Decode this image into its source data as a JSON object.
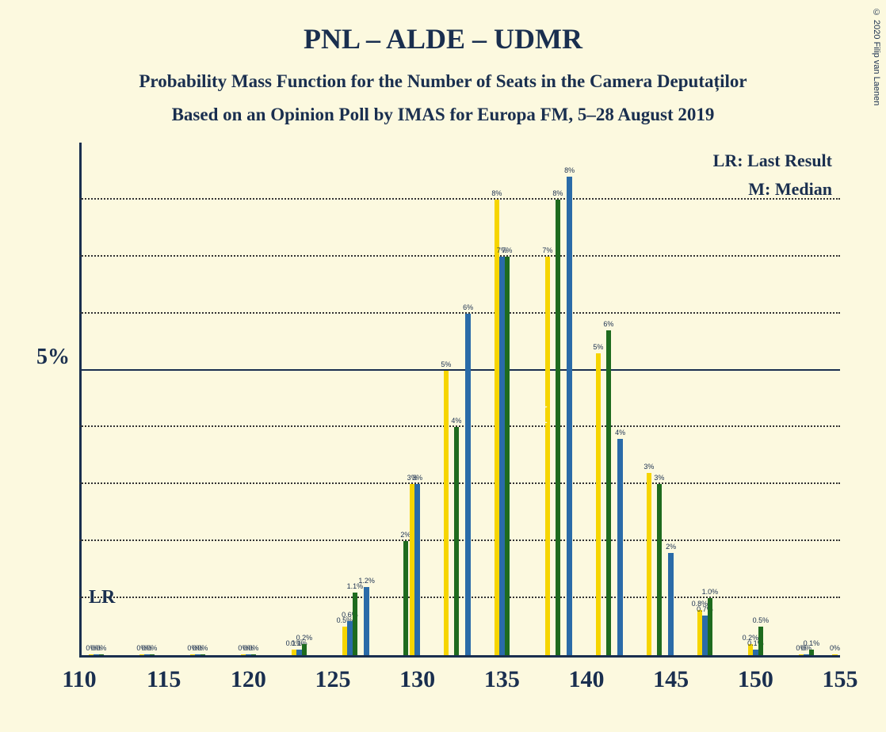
{
  "title": "PNL – ALDE – UDMR",
  "title_fontsize": 36,
  "subtitle1": "Probability Mass Function for the Number of Seats in the Camera Deputaților",
  "subtitle2": "Based on an Opinion Poll by IMAS for Europa FM, 5–28 August 2019",
  "subtitle_fontsize": 23,
  "copyright": "© 2020 Filip van Laenen",
  "background_color": "#fcf9df",
  "text_color": "#1a2f4f",
  "legend_lr": "LR: Last Result",
  "legend_m": "M: Median",
  "lr_text": "LR",
  "median_text": "M",
  "y_axis": {
    "max_pct": 9,
    "tick_major": 5,
    "tick_label": "5%",
    "gridlines": [
      1,
      2,
      3,
      4,
      5,
      6,
      7,
      8
    ]
  },
  "x_axis": {
    "min": 110,
    "max": 155,
    "ticks": [
      110,
      115,
      120,
      125,
      130,
      135,
      140,
      145,
      150,
      155
    ]
  },
  "colors": {
    "series_a": "#f6d500",
    "series_b": "#2a6ba8",
    "series_c": "#1e6b1e"
  },
  "bar_width": 6.5,
  "median_seat": 137,
  "groups": [
    {
      "seat": 111,
      "a": {
        "v": 0,
        "lbl": "0%"
      },
      "b": {
        "v": 0,
        "lbl": "0%"
      },
      "c": {
        "v": 0,
        "lbl": "0%"
      }
    },
    {
      "seat": 114,
      "a": {
        "v": 0,
        "lbl": "0%"
      },
      "b": {
        "v": 0,
        "lbl": "0%"
      },
      "c": {
        "v": 0,
        "lbl": "0%"
      }
    },
    {
      "seat": 117,
      "a": {
        "v": 0,
        "lbl": "0%"
      },
      "b": {
        "v": 0,
        "lbl": "0%"
      },
      "c": {
        "v": 0,
        "lbl": "0%"
      }
    },
    {
      "seat": 120,
      "a": {
        "v": 0,
        "lbl": "0%"
      },
      "b": {
        "v": 0,
        "lbl": "0%"
      },
      "c": {
        "v": 0,
        "lbl": "0%"
      }
    },
    {
      "seat": 123,
      "a": {
        "v": 0.1,
        "lbl": "0.1%"
      },
      "b": {
        "v": 0.1,
        "lbl": "0.1%"
      },
      "c": {
        "v": 0.2,
        "lbl": "0.2%"
      }
    },
    {
      "seat": 126,
      "a": {
        "v": 0.5,
        "lbl": "0.5%"
      },
      "b": {
        "v": 0.6,
        "lbl": "0.6%"
      },
      "c": {
        "v": 1.1,
        "lbl": "1.1%"
      }
    },
    {
      "seat": 127,
      "b": {
        "v": 1.2,
        "lbl": "1.2%"
      }
    },
    {
      "seat": 129,
      "c": {
        "v": 2,
        "lbl": "2%"
      }
    },
    {
      "seat": 130,
      "a": {
        "v": 3,
        "lbl": "3%"
      },
      "b": {
        "v": 3,
        "lbl": "3%"
      }
    },
    {
      "seat": 132,
      "c": {
        "v": 4,
        "lbl": "4%"
      },
      "a": {
        "v": 5,
        "lbl": "5%"
      }
    },
    {
      "seat": 133,
      "b": {
        "v": 6,
        "lbl": "6%"
      }
    },
    {
      "seat": 135,
      "c": {
        "v": 7,
        "lbl": "7%"
      },
      "a": {
        "v": 8,
        "lbl": "8%"
      },
      "b": {
        "v": 7,
        "lbl": "7%"
      }
    },
    {
      "seat": 138,
      "c": {
        "v": 8,
        "lbl": "8%"
      },
      "a": {
        "v": 7,
        "lbl": "7%"
      }
    },
    {
      "seat": 139,
      "b": {
        "v": 8.4,
        "lbl": "8%"
      }
    },
    {
      "seat": 141,
      "c": {
        "v": 5.7,
        "lbl": "6%"
      },
      "a": {
        "v": 5.3,
        "lbl": "5%"
      }
    },
    {
      "seat": 142,
      "b": {
        "v": 3.8,
        "lbl": "4%"
      }
    },
    {
      "seat": 144,
      "c": {
        "v": 3,
        "lbl": "3%"
      },
      "a": {
        "v": 3.2,
        "lbl": "3%"
      }
    },
    {
      "seat": 145,
      "b": {
        "v": 1.8,
        "lbl": "2%"
      }
    },
    {
      "seat": 147,
      "c": {
        "v": 1.0,
        "lbl": "1.0%"
      },
      "a": {
        "v": 0.8,
        "lbl": "0.8%"
      },
      "b": {
        "v": 0.7,
        "lbl": "0.7%"
      }
    },
    {
      "seat": 150,
      "c": {
        "v": 0.5,
        "lbl": "0.5%"
      },
      "a": {
        "v": 0.2,
        "lbl": "0.2%"
      },
      "b": {
        "v": 0.1,
        "lbl": "0.1%"
      }
    },
    {
      "seat": 153,
      "c": {
        "v": 0.1,
        "lbl": "0.1%"
      },
      "a": {
        "v": 0,
        "lbl": "0%"
      },
      "b": {
        "v": 0,
        "lbl": "0%"
      }
    },
    {
      "seat": 155,
      "a": {
        "v": 0,
        "lbl": "0%"
      }
    }
  ]
}
